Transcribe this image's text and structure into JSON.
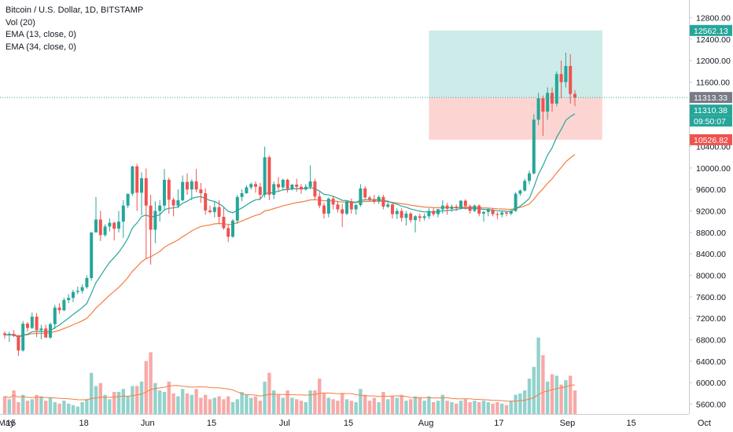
{
  "chart_data": {
    "type": "candlestick",
    "legend": {
      "title": "Bitcoin / U.S. Dollar, 1D, BITSTAMP",
      "volume": "Vol (20)",
      "ema_fast": "EMA (13, close, 0)",
      "ema_slow": "EMA (34, close, 0)"
    },
    "price_axis": {
      "ticks": [
        5600,
        6000,
        6400,
        6800,
        7200,
        7600,
        8000,
        8400,
        8800,
        9200,
        9600,
        10000,
        10400,
        11600,
        12000,
        12400,
        12800
      ],
      "tick_labels": [
        "5600.00",
        "6000.00",
        "6400.00",
        "6800.00",
        "7200.00",
        "7600.00",
        "8000.00",
        "8400.00",
        "8800.00",
        "9200.00",
        "9600.00",
        "10000.00",
        "10400.00",
        "11600.00",
        "12000.00",
        "12400.00",
        "12800.00"
      ]
    },
    "time_axis": {
      "labels": [
        "15",
        "May",
        "18",
        "Jun",
        "15",
        "Jul",
        "15",
        "Aug",
        "17",
        "Sep",
        "15",
        "Oct"
      ],
      "days": [
        -16,
        0,
        17,
        31,
        45,
        61,
        75,
        92,
        108,
        123,
        137,
        153
      ]
    },
    "price_tags": [
      {
        "label": "12562.13",
        "value": 12562.13,
        "color": "#26a69a"
      },
      {
        "label": "11313.33",
        "value": 11313.33,
        "color": "#787b86"
      },
      {
        "label": "11310.38",
        "value": 11310.38,
        "color": "#26a69a"
      },
      {
        "label": "09:50:07",
        "value": 11210,
        "color": "#26a69a"
      },
      {
        "label": "10526.82",
        "value": 10526.82,
        "color": "#ef5350"
      }
    ],
    "current_price": 11313.33,
    "position": {
      "entry": 11313.33,
      "target": 12562.13,
      "stop": 10526.82,
      "start_day": 93,
      "end_day": 131,
      "profit_color": "#cdebe8",
      "loss_color": "#fcd5d3"
    },
    "colors": {
      "up": "#26a69a",
      "down": "#ef5350",
      "ema_fast": "#26a69a",
      "ema_slow": "#f57c3f"
    },
    "series": [
      [
        6920,
        6960,
        6820,
        6890,
        1200
      ],
      [
        6890,
        6950,
        6760,
        6910,
        1000
      ],
      [
        6910,
        6980,
        6850,
        6870,
        1600
      ],
      [
        6870,
        6890,
        6500,
        6600,
        800
      ],
      [
        6600,
        7150,
        6580,
        7100,
        1300
      ],
      [
        7100,
        7130,
        6950,
        7020,
        900
      ],
      [
        7020,
        7310,
        7000,
        7230,
        1000
      ],
      [
        7230,
        7300,
        6850,
        6980,
        1300
      ],
      [
        6980,
        7080,
        6810,
        7010,
        1200
      ],
      [
        7010,
        7080,
        6880,
        6840,
        900
      ],
      [
        6840,
        7120,
        6820,
        7090,
        1100
      ],
      [
        7090,
        7450,
        7000,
        7400,
        800
      ],
      [
        7400,
        7480,
        7280,
        7350,
        700
      ],
      [
        7350,
        7580,
        7330,
        7540,
        900
      ],
      [
        7540,
        7650,
        7480,
        7580,
        700
      ],
      [
        7580,
        7730,
        7500,
        7690,
        600
      ],
      [
        7690,
        7790,
        7650,
        7710,
        500
      ],
      [
        7710,
        7830,
        7660,
        7780,
        800
      ],
      [
        7780,
        8000,
        7750,
        7950,
        1000
      ],
      [
        7950,
        8800,
        7900,
        8800,
        2800
      ],
      [
        8800,
        9460,
        8800,
        9040,
        1900
      ],
      [
        9040,
        9200,
        8640,
        8750,
        2100
      ],
      [
        8750,
        8950,
        8720,
        8910,
        1300
      ],
      [
        8910,
        9060,
        8820,
        8980,
        1000
      ],
      [
        8980,
        9000,
        8650,
        8870,
        1500
      ],
      [
        8870,
        9200,
        8800,
        9000,
        1500
      ],
      [
        9000,
        9400,
        8700,
        9300,
        1700
      ],
      [
        9300,
        9520,
        9250,
        9520,
        1200
      ],
      [
        9520,
        10040,
        9480,
        10030,
        1900
      ],
      [
        10030,
        10080,
        9200,
        9540,
        1900
      ],
      [
        9540,
        9920,
        9120,
        9810,
        2200
      ],
      [
        9810,
        9990,
        8300,
        9300,
        3600
      ],
      [
        9300,
        9500,
        8200,
        8850,
        4200
      ],
      [
        8850,
        9380,
        8600,
        9200,
        2100
      ],
      [
        9200,
        9400,
        9000,
        9300,
        1600
      ],
      [
        9300,
        9980,
        9200,
        9780,
        1500
      ],
      [
        9780,
        9820,
        9150,
        9410,
        2200
      ],
      [
        9410,
        9450,
        9100,
        9300,
        1400
      ],
      [
        9300,
        9600,
        9250,
        9400,
        1200
      ],
      [
        9400,
        9860,
        9380,
        9740,
        1700
      ],
      [
        9740,
        9900,
        9500,
        9600,
        1400
      ],
      [
        9600,
        9790,
        9400,
        9750,
        1300
      ],
      [
        9750,
        9980,
        9550,
        9600,
        1700
      ],
      [
        9600,
        9720,
        9350,
        9530,
        1100
      ],
      [
        9530,
        9620,
        9130,
        9210,
        1300
      ],
      [
        9210,
        9300,
        9150,
        9180,
        1000
      ],
      [
        9180,
        9380,
        9080,
        9270,
        1100
      ],
      [
        9270,
        9400,
        8950,
        9090,
        1200
      ],
      [
        9090,
        9260,
        8850,
        8880,
        1000
      ],
      [
        8880,
        8950,
        8620,
        8720,
        1200
      ],
      [
        8720,
        9050,
        8700,
        9020,
        800
      ],
      [
        9020,
        9500,
        8960,
        9460,
        1000
      ],
      [
        9460,
        9600,
        9380,
        9530,
        1500
      ],
      [
        9530,
        9680,
        9520,
        9640,
        1300
      ],
      [
        9640,
        9730,
        9600,
        9700,
        1100
      ],
      [
        9700,
        9750,
        9540,
        9650,
        1200
      ],
      [
        9650,
        9720,
        9400,
        9500,
        900
      ],
      [
        9500,
        10400,
        9450,
        10200,
        2200
      ],
      [
        10200,
        10230,
        9400,
        9500,
        2800
      ],
      [
        9500,
        9750,
        9420,
        9700,
        1600
      ],
      [
        9700,
        9830,
        9560,
        9640,
        1300
      ],
      [
        9640,
        9800,
        9600,
        9780,
        1100
      ],
      [
        9780,
        9800,
        9540,
        9610,
        1600
      ],
      [
        9610,
        9700,
        9580,
        9690,
        1100
      ],
      [
        9690,
        9800,
        9560,
        9650,
        1000
      ],
      [
        9650,
        9700,
        9520,
        9600,
        900
      ],
      [
        9600,
        9700,
        9580,
        9650,
        800
      ],
      [
        9650,
        10050,
        9600,
        9750,
        1600
      ],
      [
        9750,
        9800,
        9400,
        9470,
        1600
      ],
      [
        9470,
        9550,
        9250,
        9300,
        2400
      ],
      [
        9300,
        9350,
        9060,
        9150,
        1400
      ],
      [
        9150,
        9450,
        9080,
        9430,
        1100
      ],
      [
        9430,
        9470,
        9230,
        9320,
        1000
      ],
      [
        9320,
        9380,
        9170,
        9230,
        900
      ],
      [
        9230,
        9330,
        8900,
        9150,
        1400
      ],
      [
        9150,
        9400,
        9120,
        9380,
        1000
      ],
      [
        9380,
        9430,
        9150,
        9230,
        900
      ],
      [
        9230,
        9330,
        9130,
        9310,
        800
      ],
      [
        9310,
        9700,
        9280,
        9620,
        1700
      ],
      [
        9620,
        9660,
        9420,
        9450,
        1300
      ],
      [
        9450,
        9480,
        9380,
        9420,
        900
      ],
      [
        9420,
        9500,
        9330,
        9380,
        1100
      ],
      [
        9380,
        9490,
        9330,
        9460,
        800
      ],
      [
        9460,
        9500,
        9230,
        9280,
        1500
      ],
      [
        9280,
        9380,
        9250,
        9320,
        1000
      ],
      [
        9320,
        9340,
        9060,
        9140,
        1200
      ],
      [
        9140,
        9250,
        9050,
        9200,
        1100
      ],
      [
        9200,
        9250,
        9000,
        9070,
        1300
      ],
      [
        9070,
        9200,
        8930,
        9150,
        900
      ],
      [
        9150,
        9180,
        8980,
        9030,
        1000
      ],
      [
        9030,
        9120,
        8800,
        9100,
        1200
      ],
      [
        9100,
        9150,
        9000,
        9070,
        1100
      ],
      [
        9070,
        9150,
        9020,
        9100,
        900
      ],
      [
        9100,
        9250,
        9050,
        9200,
        1200
      ],
      [
        9200,
        9250,
        9100,
        9140,
        800
      ],
      [
        9140,
        9240,
        9080,
        9230,
        900
      ],
      [
        9230,
        9400,
        9150,
        9300,
        1300
      ],
      [
        9300,
        9350,
        9130,
        9240,
        900
      ],
      [
        9240,
        9320,
        9180,
        9280,
        800
      ],
      [
        9280,
        9320,
        9200,
        9250,
        700
      ],
      [
        9250,
        9400,
        9230,
        9390,
        900
      ],
      [
        9390,
        9420,
        9220,
        9290,
        1000
      ],
      [
        9290,
        9320,
        9150,
        9200,
        800
      ],
      [
        9200,
        9320,
        9180,
        9300,
        900
      ],
      [
        9300,
        9320,
        9100,
        9150,
        800
      ],
      [
        9150,
        9200,
        9000,
        9180,
        900
      ],
      [
        9180,
        9260,
        9100,
        9220,
        800
      ],
      [
        9220,
        9250,
        9100,
        9140,
        700
      ],
      [
        9140,
        9180,
        9050,
        9130,
        800
      ],
      [
        9130,
        9200,
        9080,
        9170,
        700
      ],
      [
        9170,
        9200,
        9100,
        9150,
        600
      ],
      [
        9150,
        9220,
        9120,
        9200,
        900
      ],
      [
        9200,
        9550,
        9180,
        9520,
        1300
      ],
      [
        9520,
        9600,
        9480,
        9580,
        1400
      ],
      [
        9580,
        9800,
        9560,
        9760,
        1600
      ],
      [
        9760,
        9950,
        9700,
        9900,
        2400
      ],
      [
        9900,
        11000,
        9880,
        10900,
        3200
      ],
      [
        10900,
        11400,
        10800,
        11300,
        5200
      ],
      [
        11300,
        11350,
        10600,
        11050,
        4000
      ],
      [
        11050,
        11500,
        10900,
        11400,
        2200
      ],
      [
        11400,
        11500,
        11050,
        11200,
        2700
      ],
      [
        11200,
        11800,
        11150,
        11750,
        2600
      ],
      [
        11750,
        12000,
        11300,
        11600,
        2000
      ],
      [
        11600,
        12150,
        11500,
        11900,
        2300
      ],
      [
        11900,
        12120,
        11200,
        11380,
        2600
      ],
      [
        11380,
        11450,
        11150,
        11310,
        1600
      ]
    ],
    "ylim": [
      5560,
      13080
    ]
  }
}
